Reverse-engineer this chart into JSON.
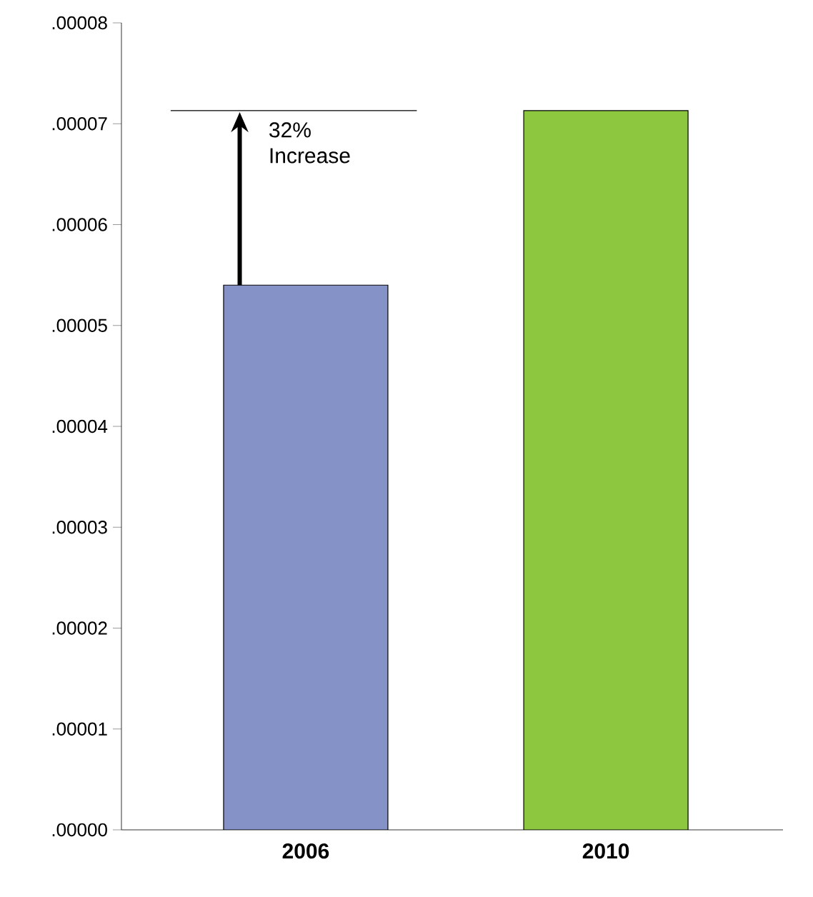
{
  "chart_data": {
    "type": "bar",
    "categories": [
      "2006",
      "2010"
    ],
    "values": [
      5.4e-05,
      7.13e-05
    ],
    "colors": [
      "#8592c8",
      "#8dc63f"
    ],
    "ylim": [
      0,
      8e-05
    ],
    "yticks": [
      {
        "value": 0,
        "label": ".00000"
      },
      {
        "value": 1e-05,
        "label": ".00001"
      },
      {
        "value": 2e-05,
        "label": ".00002"
      },
      {
        "value": 3e-05,
        "label": ".00003"
      },
      {
        "value": 4e-05,
        "label": ".00004"
      },
      {
        "value": 5e-05,
        "label": ".00005"
      },
      {
        "value": 6e-05,
        "label": ".00006"
      },
      {
        "value": 7e-05,
        "label": ".00007"
      },
      {
        "value": 8e-05,
        "label": ".00008"
      }
    ],
    "annotations": [
      "32% Increase"
    ]
  }
}
